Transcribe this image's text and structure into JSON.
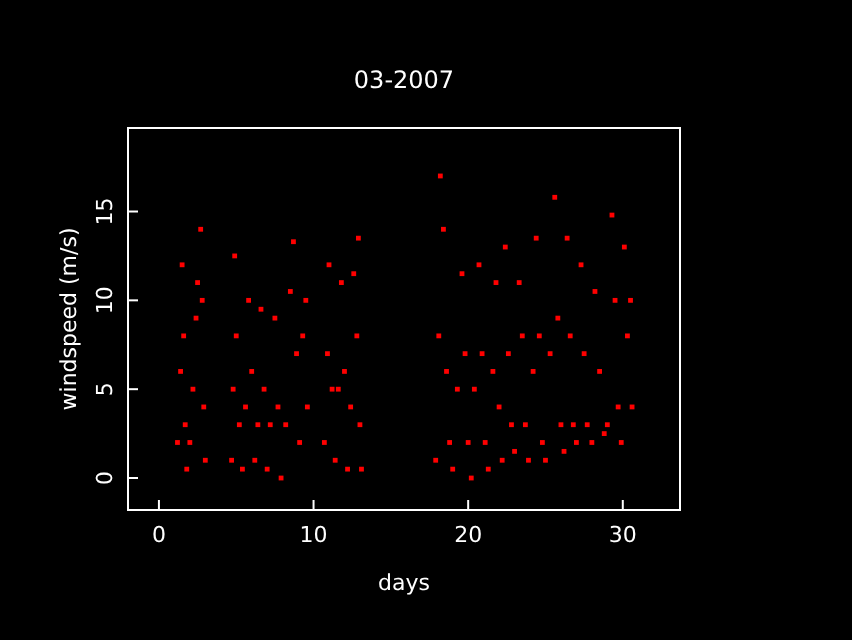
{
  "chart_data": {
    "type": "scatter",
    "title": "03-2007",
    "xlabel": "days",
    "ylabel": "windspeed (m/s)",
    "xlim": [
      -2,
      33.7
    ],
    "ylim": [
      -1.8,
      19.7
    ],
    "xticks": [
      0,
      10,
      20,
      30
    ],
    "yticks": [
      0,
      5,
      10,
      15
    ],
    "grid": false,
    "marker": "square",
    "series": [
      {
        "color": "#ff0000",
        "x": [
          1.2,
          1.4,
          1.5,
          1.6,
          1.7,
          1.8,
          2.0,
          2.2,
          2.4,
          2.5,
          2.7,
          2.8,
          2.9,
          3.0,
          4.7,
          4.8,
          4.9,
          5.0,
          5.2,
          5.4,
          5.6,
          5.8,
          6.0,
          6.2,
          6.4,
          6.6,
          6.8,
          7.0,
          7.2,
          7.5,
          7.7,
          7.9,
          8.2,
          8.5,
          8.7,
          8.9,
          9.1,
          9.3,
          9.5,
          9.6,
          10.7,
          10.9,
          11.0,
          11.2,
          11.4,
          11.6,
          11.8,
          12.0,
          12.2,
          12.4,
          12.6,
          12.8,
          12.9,
          13.0,
          13.1,
          17.9,
          18.1,
          18.2,
          18.4,
          18.6,
          18.8,
          19.0,
          19.3,
          19.6,
          19.8,
          20.0,
          20.2,
          20.4,
          20.7,
          20.9,
          21.1,
          21.3,
          21.6,
          21.8,
          22.0,
          22.2,
          22.4,
          22.6,
          22.8,
          23.0,
          23.3,
          23.5,
          23.7,
          23.9,
          24.2,
          24.4,
          24.6,
          24.8,
          25.0,
          25.3,
          25.6,
          25.8,
          26.0,
          26.2,
          26.4,
          26.6,
          26.8,
          27.0,
          27.3,
          27.5,
          27.7,
          28.0,
          28.2,
          28.5,
          28.8,
          29.0,
          29.3,
          29.5,
          29.7,
          29.9,
          30.1,
          30.3,
          30.5,
          30.6
        ],
        "values": [
          2,
          6,
          12,
          8,
          3,
          0.5,
          2,
          5,
          9,
          11,
          14,
          10,
          4,
          1,
          1,
          5,
          12.5,
          8,
          3,
          0.5,
          4,
          10,
          6,
          1,
          3,
          9.5,
          5,
          0.5,
          3,
          9,
          4,
          0,
          3,
          10.5,
          13.3,
          7,
          2,
          8,
          10,
          4,
          2,
          7,
          12,
          5,
          1,
          5,
          11,
          6,
          0.5,
          4,
          11.5,
          8,
          13.5,
          3,
          0.5,
          1,
          8,
          17,
          14,
          6,
          2,
          0.5,
          5,
          11.5,
          7,
          2,
          0,
          5,
          12,
          7,
          2,
          0.5,
          6,
          11,
          4,
          1,
          13,
          7,
          3,
          1.5,
          11,
          8,
          3,
          1,
          6,
          13.5,
          8,
          2,
          1,
          7,
          15.8,
          9,
          3,
          1.5,
          13.5,
          8,
          3,
          2,
          12,
          7,
          3,
          2,
          10.5,
          6,
          2.5,
          3,
          14.8,
          10,
          4,
          2,
          13,
          8,
          10,
          4
        ]
      }
    ]
  }
}
